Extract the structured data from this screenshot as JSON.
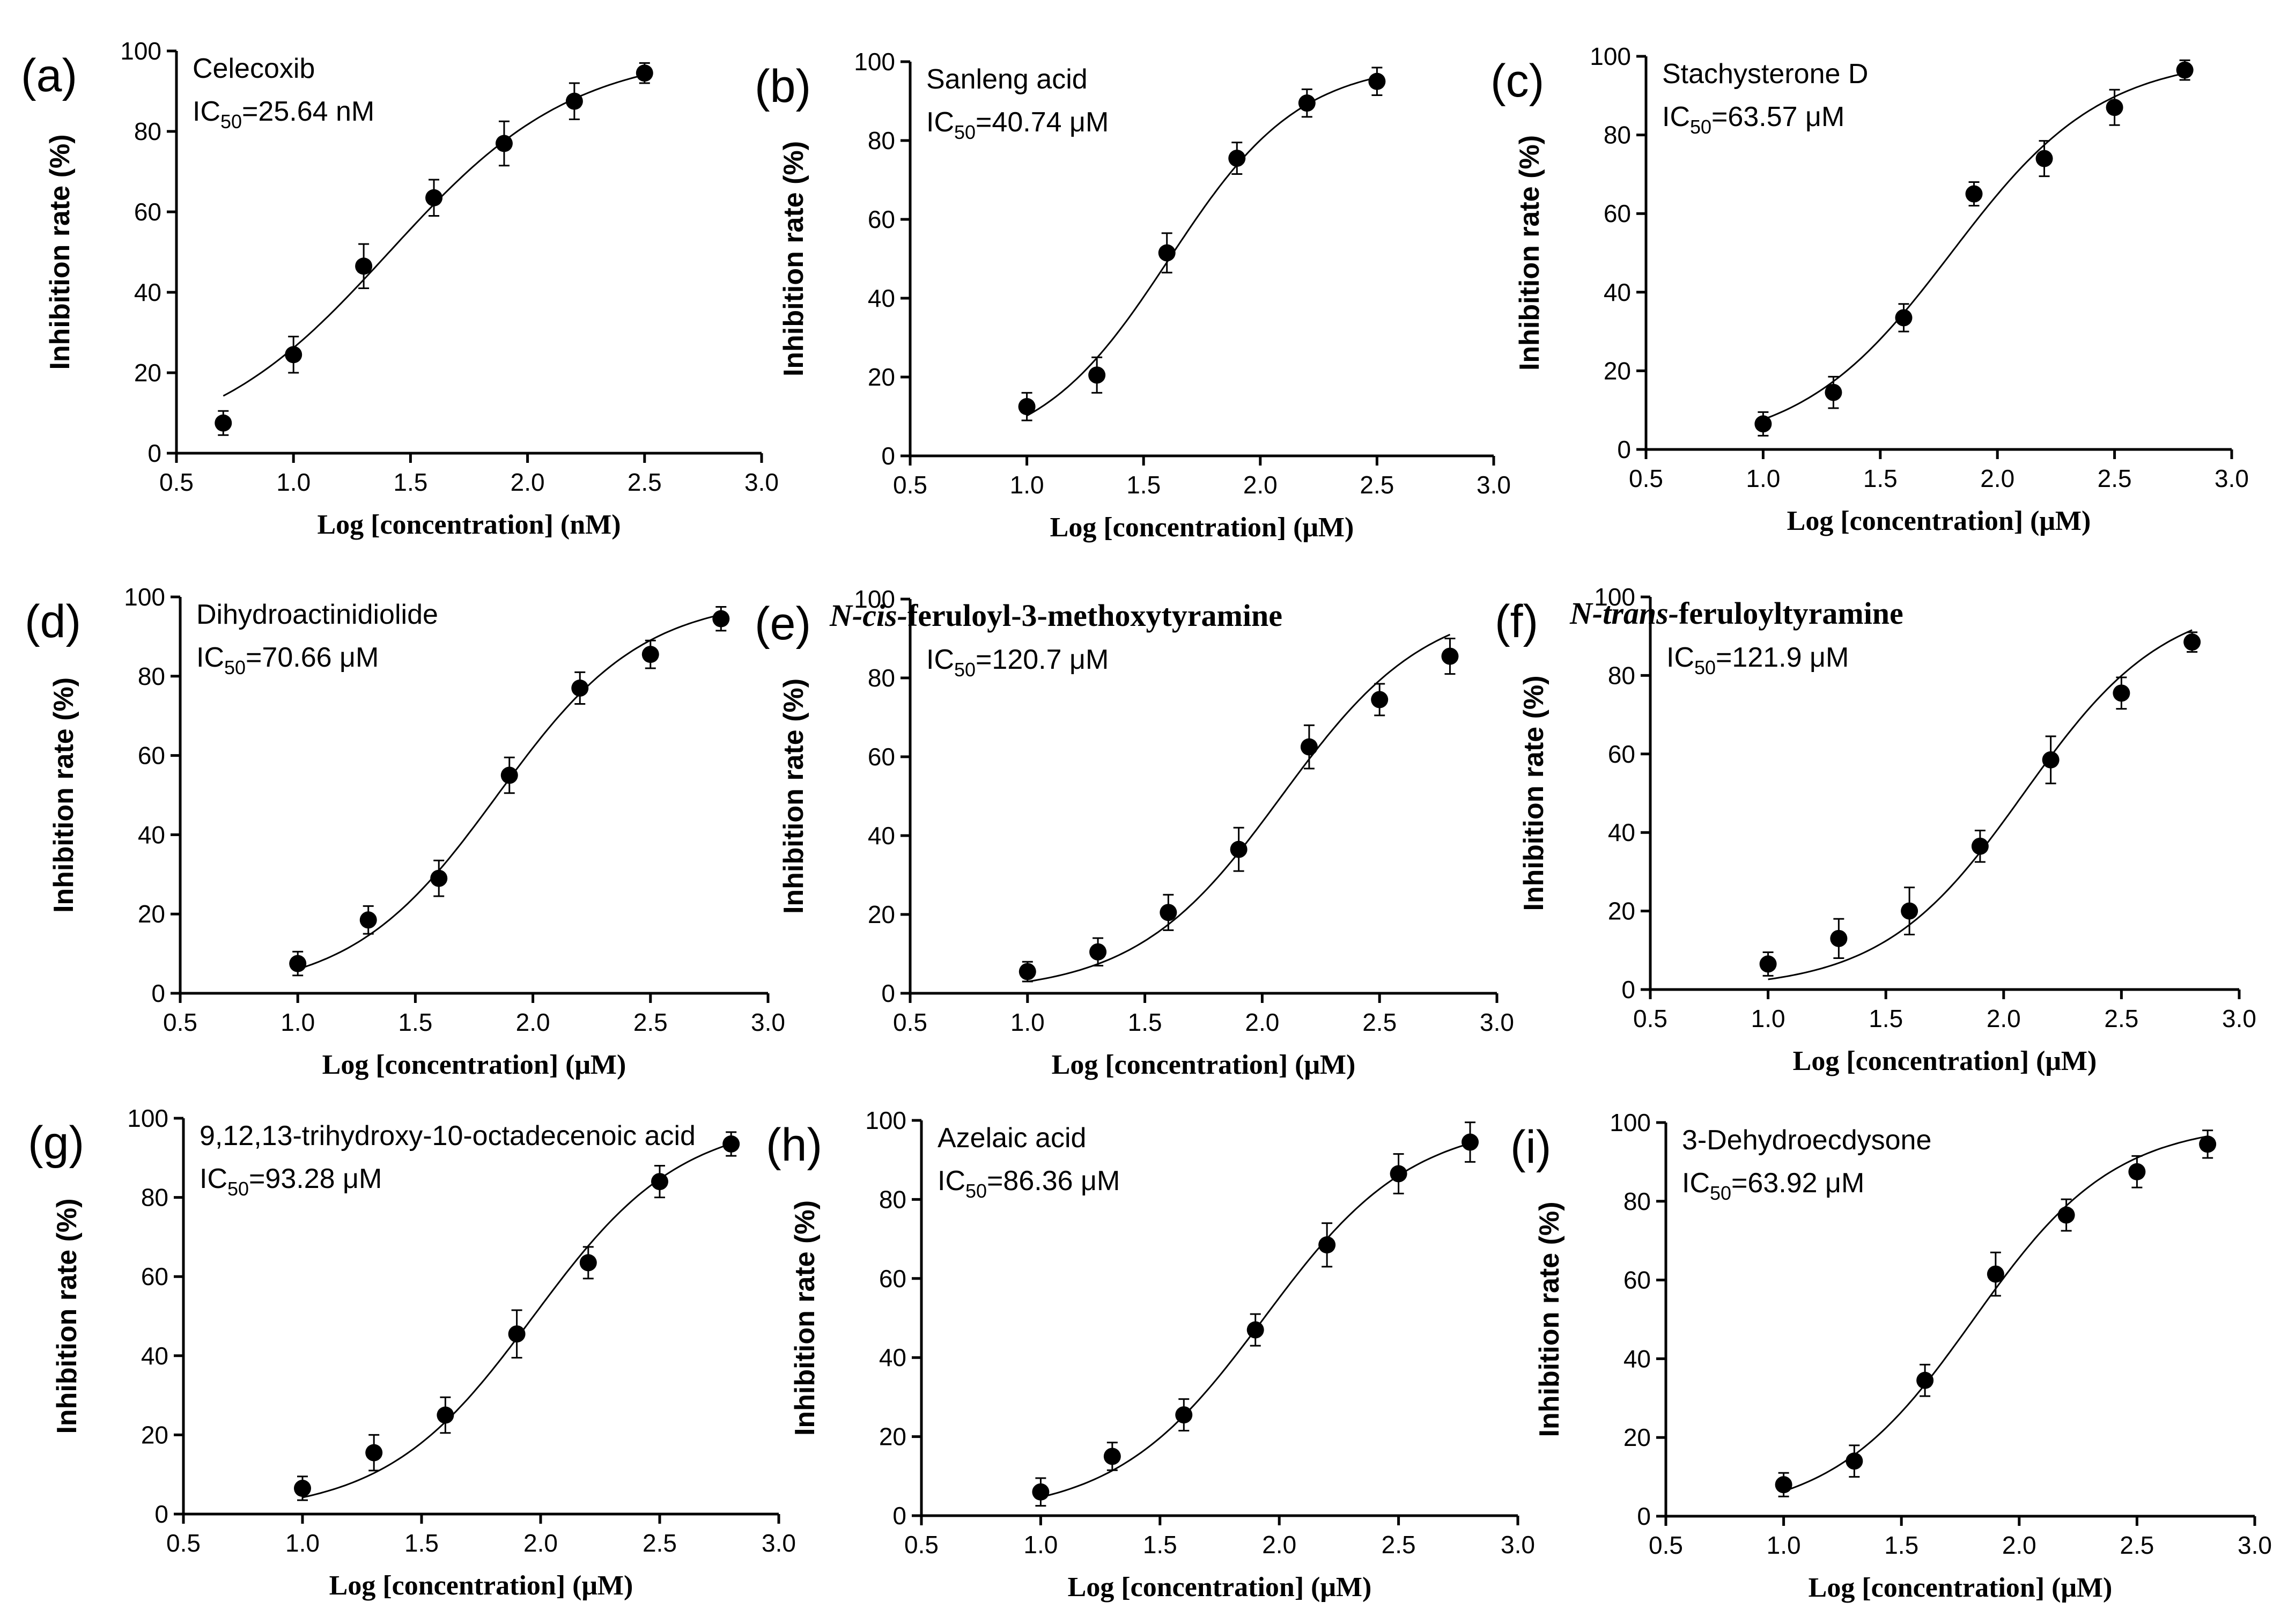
{
  "chart_data": [
    {
      "type": "scatter",
      "panel": "(a)",
      "compound": "Celecoxib",
      "compound_style": "plain",
      "ic50_prefix": "IC",
      "ic50_sub": "50",
      "ic50_value": "=25.64 nM",
      "xlabel": "Log [concentration] (nM)",
      "ylabel": "Inhibition rate (%)",
      "xlim": [
        0.5,
        3.0
      ],
      "ylim": [
        0,
        100
      ],
      "xticks": [
        "0.5",
        "1.0",
        "1.5",
        "2.0",
        "2.5",
        "3.0"
      ],
      "yticks": [
        "0",
        "20",
        "40",
        "60",
        "80",
        "100"
      ],
      "fit": {
        "logic50": 1.409,
        "hill": 1.1
      },
      "points": [
        {
          "x": 0.7,
          "y": 7.5,
          "err": 3
        },
        {
          "x": 1.0,
          "y": 24.5,
          "err": 4.5
        },
        {
          "x": 1.3,
          "y": 46.5,
          "err": 5.5
        },
        {
          "x": 1.6,
          "y": 63.5,
          "err": 4.5
        },
        {
          "x": 1.9,
          "y": 77,
          "err": 5.5
        },
        {
          "x": 2.2,
          "y": 87.5,
          "err": 4.5
        },
        {
          "x": 2.5,
          "y": 94.5,
          "err": 2.5
        }
      ]
    },
    {
      "type": "scatter",
      "panel": "(b)",
      "compound": "Sanleng acid",
      "compound_style": "plain",
      "ic50_prefix": "IC",
      "ic50_sub": "50",
      "ic50_value": "=40.74 μM",
      "xlabel": "Log [concentration] (μM)",
      "ylabel": "Inhibition rate (%)",
      "xlim": [
        0.5,
        3.0
      ],
      "ylim": [
        0,
        100
      ],
      "xticks": [
        "0.5",
        "1.0",
        "1.5",
        "2.0",
        "2.5",
        "3.0"
      ],
      "yticks": [
        "0",
        "20",
        "40",
        "60",
        "80",
        "100"
      ],
      "fit": {
        "logic50": 1.61,
        "hill": 1.55
      },
      "points": [
        {
          "x": 1.0,
          "y": 12.5,
          "err": 3.5
        },
        {
          "x": 1.3,
          "y": 20.5,
          "err": 4.5
        },
        {
          "x": 1.6,
          "y": 51.5,
          "err": 5
        },
        {
          "x": 1.9,
          "y": 75.5,
          "err": 4
        },
        {
          "x": 2.2,
          "y": 89.5,
          "err": 3.5
        },
        {
          "x": 2.5,
          "y": 95,
          "err": 3.5
        }
      ]
    },
    {
      "type": "scatter",
      "panel": "(c)",
      "compound": "Stachysterone D",
      "compound_style": "plain",
      "ic50_prefix": "IC",
      "ic50_sub": "50",
      "ic50_value": "=63.57 μM",
      "xlabel": "Log [concentration] (μM)",
      "ylabel": "Inhibition rate (%)",
      "xlim": [
        0.5,
        3.0
      ],
      "ylim": [
        0,
        100
      ],
      "xticks": [
        "0.5",
        "1.0",
        "1.5",
        "2.0",
        "2.5",
        "3.0"
      ],
      "yticks": [
        "0",
        "20",
        "40",
        "60",
        "80",
        "100"
      ],
      "fit": {
        "logic50": 1.803,
        "hill": 1.35
      },
      "points": [
        {
          "x": 1.0,
          "y": 6.5,
          "err": 3
        },
        {
          "x": 1.3,
          "y": 14.5,
          "err": 4
        },
        {
          "x": 1.6,
          "y": 33.5,
          "err": 3.5
        },
        {
          "x": 1.9,
          "y": 65,
          "err": 3
        },
        {
          "x": 2.2,
          "y": 74,
          "err": 4.5
        },
        {
          "x": 2.5,
          "y": 87,
          "err": 4.5
        },
        {
          "x": 2.8,
          "y": 96.5,
          "err": 2.5
        }
      ]
    },
    {
      "type": "scatter",
      "panel": "(d)",
      "compound": "Dihydroactinidiolide",
      "compound_style": "plain",
      "ic50_prefix": "IC",
      "ic50_sub": "50",
      "ic50_value": "=70.66 μM",
      "xlabel": "Log [concentration] (μM)",
      "ylabel": "Inhibition rate (%)",
      "xlim": [
        0.5,
        3.0
      ],
      "ylim": [
        0,
        100
      ],
      "xticks": [
        "0.5",
        "1.0",
        "1.5",
        "2.0",
        "2.5",
        "3.0"
      ],
      "yticks": [
        "0",
        "20",
        "40",
        "60",
        "80",
        "100"
      ],
      "fit": {
        "logic50": 1.849,
        "hill": 1.4
      },
      "points": [
        {
          "x": 1.0,
          "y": 7.5,
          "err": 3
        },
        {
          "x": 1.3,
          "y": 18.5,
          "err": 3.5
        },
        {
          "x": 1.6,
          "y": 29,
          "err": 4.5
        },
        {
          "x": 1.9,
          "y": 55,
          "err": 4.5
        },
        {
          "x": 2.2,
          "y": 77,
          "err": 4
        },
        {
          "x": 2.5,
          "y": 85.5,
          "err": 3.5
        },
        {
          "x": 2.8,
          "y": 94.5,
          "err": 3
        }
      ]
    },
    {
      "type": "scatter",
      "panel": "(e)",
      "compound_prefix": "N-cis-",
      "compound": "feruloyl-3-methoxytyramine",
      "compound_style": "serif",
      "ic50_prefix": "IC",
      "ic50_sub": "50",
      "ic50_value": "=120.7 μM",
      "xlabel": "Log [concentration] (μM)",
      "ylabel": "Inhibition rate (%)",
      "xlim": [
        0.5,
        3.0
      ],
      "ylim": [
        0,
        100
      ],
      "xticks": [
        "0.5",
        "1.0",
        "1.5",
        "2.0",
        "2.5",
        "3.0"
      ],
      "yticks": [
        "0",
        "20",
        "40",
        "60",
        "80",
        "100"
      ],
      "fit": {
        "logic50": 2.082,
        "hill": 1.4
      },
      "points": [
        {
          "x": 1.0,
          "y": 5.5,
          "err": 2.5
        },
        {
          "x": 1.3,
          "y": 10.5,
          "err": 3.5
        },
        {
          "x": 1.6,
          "y": 20.5,
          "err": 4.5
        },
        {
          "x": 1.9,
          "y": 36.5,
          "err": 5.5
        },
        {
          "x": 2.2,
          "y": 62.5,
          "err": 5.5
        },
        {
          "x": 2.5,
          "y": 74.5,
          "err": 4
        },
        {
          "x": 2.8,
          "y": 85.5,
          "err": 4.5
        }
      ]
    },
    {
      "type": "scatter",
      "panel": "(f)",
      "compound_prefix": "N-trans-",
      "compound": "feruloyltyramine",
      "compound_style": "serif",
      "ic50_prefix": "IC",
      "ic50_sub": "50",
      "ic50_value": "=121.9 μM",
      "xlabel": "Log [concentration] (μM)",
      "ylabel": "Inhibition rate (%)",
      "xlim": [
        0.5,
        3.0
      ],
      "ylim": [
        0,
        100
      ],
      "xticks": [
        "0.5",
        "1.0",
        "1.5",
        "2.0",
        "2.5",
        "3.0"
      ],
      "yticks": [
        "0",
        "20",
        "40",
        "60",
        "80",
        "100"
      ],
      "fit": {
        "logic50": 2.086,
        "hill": 1.45
      },
      "points": [
        {
          "x": 1.0,
          "y": 6.5,
          "err": 3
        },
        {
          "x": 1.3,
          "y": 13,
          "err": 5
        },
        {
          "x": 1.6,
          "y": 20,
          "err": 6
        },
        {
          "x": 1.9,
          "y": 36.5,
          "err": 4
        },
        {
          "x": 2.2,
          "y": 58.5,
          "err": 6
        },
        {
          "x": 2.5,
          "y": 75.5,
          "err": 4
        },
        {
          "x": 2.8,
          "y": 88.5,
          "err": 2.5
        }
      ]
    },
    {
      "type": "scatter",
      "panel": "(g)",
      "compound": "9,12,13-trihydroxy-10-octadecenoic acid",
      "compound_style": "plain",
      "ic50_prefix": "IC",
      "ic50_sub": "50",
      "ic50_value": "=93.28 μM",
      "xlabel": "Log [concentration] (μM)",
      "ylabel": "Inhibition rate (%)",
      "xlim": [
        0.5,
        3.0
      ],
      "ylim": [
        0,
        100
      ],
      "xticks": [
        "0.5",
        "1.0",
        "1.5",
        "2.0",
        "2.5",
        "3.0"
      ],
      "yticks": [
        "0",
        "20",
        "40",
        "60",
        "80",
        "100"
      ],
      "fit": {
        "logic50": 1.97,
        "hill": 1.4
      },
      "points": [
        {
          "x": 1.0,
          "y": 6.5,
          "err": 3
        },
        {
          "x": 1.3,
          "y": 15.5,
          "err": 4.5
        },
        {
          "x": 1.6,
          "y": 25,
          "err": 4.5
        },
        {
          "x": 1.9,
          "y": 45.5,
          "err": 6
        },
        {
          "x": 2.2,
          "y": 63.5,
          "err": 4
        },
        {
          "x": 2.5,
          "y": 84,
          "err": 4
        },
        {
          "x": 2.8,
          "y": 93.5,
          "err": 3
        }
      ]
    },
    {
      "type": "scatter",
      "panel": "(h)",
      "compound": "Azelaic acid",
      "compound_style": "plain",
      "ic50_prefix": "IC",
      "ic50_sub": "50",
      "ic50_value": "=86.36 μM",
      "xlabel": "Log [concentration] (μM)",
      "ylabel": "Inhibition rate (%)",
      "xlim": [
        0.5,
        3.0
      ],
      "ylim": [
        0,
        100
      ],
      "xticks": [
        "0.5",
        "1.0",
        "1.5",
        "2.0",
        "2.5",
        "3.0"
      ],
      "yticks": [
        "0",
        "20",
        "40",
        "60",
        "80",
        "100"
      ],
      "fit": {
        "logic50": 1.936,
        "hill": 1.4
      },
      "points": [
        {
          "x": 1.0,
          "y": 6,
          "err": 3.5
        },
        {
          "x": 1.3,
          "y": 15,
          "err": 3.5
        },
        {
          "x": 1.6,
          "y": 25.5,
          "err": 4
        },
        {
          "x": 1.9,
          "y": 47,
          "err": 4
        },
        {
          "x": 2.2,
          "y": 68.5,
          "err": 5.5
        },
        {
          "x": 2.5,
          "y": 86.5,
          "err": 5
        },
        {
          "x": 2.8,
          "y": 94.5,
          "err": 5
        }
      ]
    },
    {
      "type": "scatter",
      "panel": "(i)",
      "compound": "3-Dehydroecdysone",
      "compound_style": "plain",
      "ic50_prefix": "IC",
      "ic50_sub": "50",
      "ic50_value": "=63.92 μM",
      "xlabel": "Log [concentration] (μM)",
      "ylabel": "Inhibition rate (%)",
      "xlim": [
        0.5,
        3.0
      ],
      "ylim": [
        0,
        100
      ],
      "xticks": [
        "0.5",
        "1.0",
        "1.5",
        "2.0",
        "2.5",
        "3.0"
      ],
      "yticks": [
        "0",
        "20",
        "40",
        "60",
        "80",
        "100"
      ],
      "fit": {
        "logic50": 1.806,
        "hill": 1.45
      },
      "points": [
        {
          "x": 1.0,
          "y": 8,
          "err": 3
        },
        {
          "x": 1.3,
          "y": 14,
          "err": 4
        },
        {
          "x": 1.6,
          "y": 34.5,
          "err": 4
        },
        {
          "x": 1.9,
          "y": 61.5,
          "err": 5.5
        },
        {
          "x": 2.2,
          "y": 76.5,
          "err": 4
        },
        {
          "x": 2.5,
          "y": 87.5,
          "err": 4
        },
        {
          "x": 2.8,
          "y": 94.5,
          "err": 3.5
        }
      ]
    }
  ]
}
